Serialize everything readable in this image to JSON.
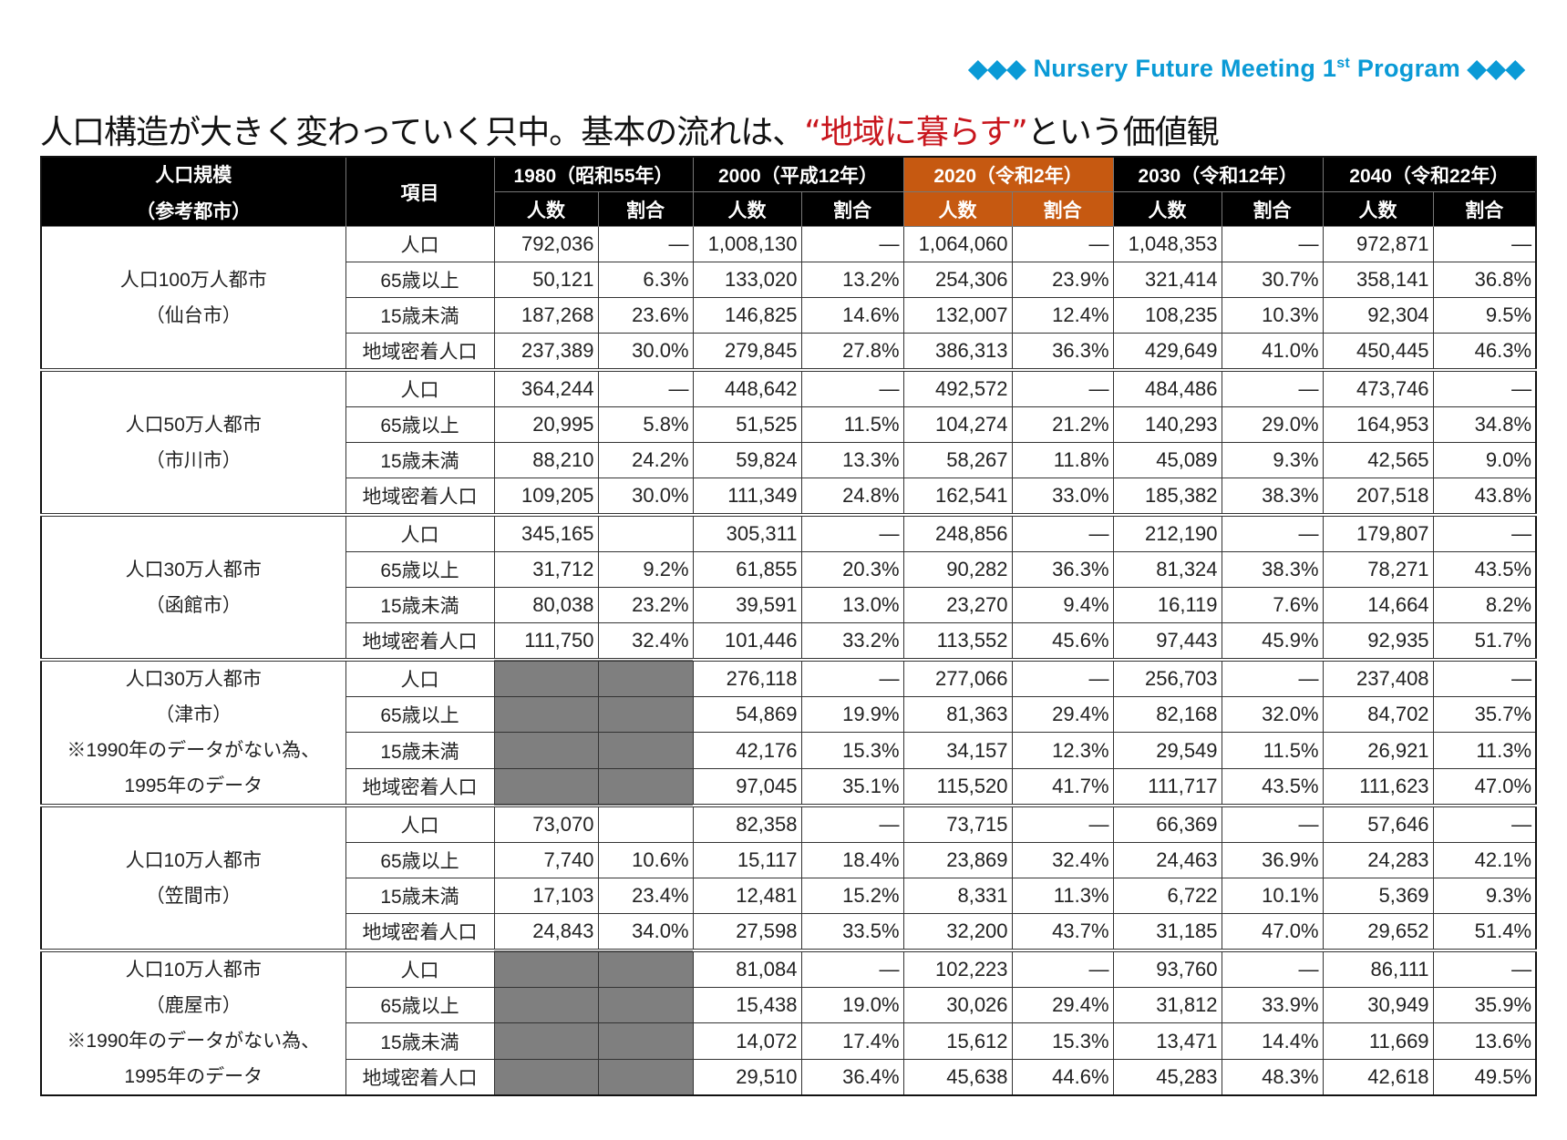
{
  "brand": {
    "prefix": "◆◆◆ Nursery Future Meeting  1",
    "sup": "st",
    "suffix": " Program ◆◆◆",
    "color": "#0a9ad6"
  },
  "title": {
    "before": "人口構造が大きく変わっていく只中。基本の流れは、",
    "highlight": "“地域に暮らす”",
    "after": "という価値観",
    "highlight_color": "#c8161d"
  },
  "table": {
    "header": {
      "scale_label_1": "人口規模",
      "scale_label_2": "（参考都市）",
      "item_label": "項目",
      "years": [
        "1980（昭和55年）",
        "2000（平成12年）",
        "2020（令和2年）",
        "2030（令和12年）",
        "2040（令和22年）"
      ],
      "highlight_year_index": 2,
      "highlight_color": "#c65911",
      "sub": [
        "人数",
        "割合"
      ]
    },
    "items": [
      "人口",
      "65歳以上",
      "15歳未満",
      "地域密着人口"
    ],
    "groups": [
      {
        "city": [
          "人口100万人都市",
          "（仙台市）"
        ],
        "no1980": false,
        "rows": [
          [
            "792,036",
            "—",
            "1,008,130",
            "—",
            "1,064,060",
            "—",
            "1,048,353",
            "—",
            "972,871",
            "—"
          ],
          [
            "50,121",
            "6.3%",
            "133,020",
            "13.2%",
            "254,306",
            "23.9%",
            "321,414",
            "30.7%",
            "358,141",
            "36.8%"
          ],
          [
            "187,268",
            "23.6%",
            "146,825",
            "14.6%",
            "132,007",
            "12.4%",
            "108,235",
            "10.3%",
            "92,304",
            "9.5%"
          ],
          [
            "237,389",
            "30.0%",
            "279,845",
            "27.8%",
            "386,313",
            "36.3%",
            "429,649",
            "41.0%",
            "450,445",
            "46.3%"
          ]
        ]
      },
      {
        "city": [
          "人口50万人都市",
          "（市川市）"
        ],
        "no1980": false,
        "rows": [
          [
            "364,244",
            "—",
            "448,642",
            "—",
            "492,572",
            "—",
            "484,486",
            "—",
            "473,746",
            "—"
          ],
          [
            "20,995",
            "5.8%",
            "51,525",
            "11.5%",
            "104,274",
            "21.2%",
            "140,293",
            "29.0%",
            "164,953",
            "34.8%"
          ],
          [
            "88,210",
            "24.2%",
            "59,824",
            "13.3%",
            "58,267",
            "11.8%",
            "45,089",
            "9.3%",
            "42,565",
            "9.0%"
          ],
          [
            "109,205",
            "30.0%",
            "111,349",
            "24.8%",
            "162,541",
            "33.0%",
            "185,382",
            "38.3%",
            "207,518",
            "43.8%"
          ]
        ]
      },
      {
        "city": [
          "人口30万人都市",
          "（函館市）"
        ],
        "no1980": false,
        "rows": [
          [
            "345,165",
            "",
            "305,311",
            "—",
            "248,856",
            "—",
            "212,190",
            "—",
            "179,807",
            "—"
          ],
          [
            "31,712",
            "9.2%",
            "61,855",
            "20.3%",
            "90,282",
            "36.3%",
            "81,324",
            "38.3%",
            "78,271",
            "43.5%"
          ],
          [
            "80,038",
            "23.2%",
            "39,591",
            "13.0%",
            "23,270",
            "9.4%",
            "16,119",
            "7.6%",
            "14,664",
            "8.2%"
          ],
          [
            "111,750",
            "32.4%",
            "101,446",
            "33.2%",
            "113,552",
            "45.6%",
            "97,443",
            "45.9%",
            "92,935",
            "51.7%"
          ]
        ]
      },
      {
        "city": [
          "人口30万人都市",
          "（津市）",
          "※1990年のデータがない為、",
          "1995年のデータ"
        ],
        "no1980": true,
        "rows": [
          [
            "",
            "",
            "276,118",
            "—",
            "277,066",
            "—",
            "256,703",
            "—",
            "237,408",
            "—"
          ],
          [
            "",
            "",
            "54,869",
            "19.9%",
            "81,363",
            "29.4%",
            "82,168",
            "32.0%",
            "84,702",
            "35.7%"
          ],
          [
            "",
            "",
            "42,176",
            "15.3%",
            "34,157",
            "12.3%",
            "29,549",
            "11.5%",
            "26,921",
            "11.3%"
          ],
          [
            "",
            "",
            "97,045",
            "35.1%",
            "115,520",
            "41.7%",
            "111,717",
            "43.5%",
            "111,623",
            "47.0%"
          ]
        ]
      },
      {
        "city": [
          "人口10万人都市",
          "（笠間市）"
        ],
        "no1980": false,
        "rows": [
          [
            "73,070",
            "",
            "82,358",
            "—",
            "73,715",
            "—",
            "66,369",
            "—",
            "57,646",
            "—"
          ],
          [
            "7,740",
            "10.6%",
            "15,117",
            "18.4%",
            "23,869",
            "32.4%",
            "24,463",
            "36.9%",
            "24,283",
            "42.1%"
          ],
          [
            "17,103",
            "23.4%",
            "12,481",
            "15.2%",
            "8,331",
            "11.3%",
            "6,722",
            "10.1%",
            "5,369",
            "9.3%"
          ],
          [
            "24,843",
            "34.0%",
            "27,598",
            "33.5%",
            "32,200",
            "43.7%",
            "31,185",
            "47.0%",
            "29,652",
            "51.4%"
          ]
        ]
      },
      {
        "city": [
          "人口10万人都市",
          "（鹿屋市）",
          "※1990年のデータがない為、",
          "1995年のデータ"
        ],
        "no1980": true,
        "rows": [
          [
            "",
            "",
            "81,084",
            "—",
            "102,223",
            "—",
            "93,760",
            "—",
            "86,111",
            "—"
          ],
          [
            "",
            "",
            "15,438",
            "19.0%",
            "30,026",
            "29.4%",
            "31,812",
            "33.9%",
            "30,949",
            "35.9%"
          ],
          [
            "",
            "",
            "14,072",
            "17.4%",
            "15,612",
            "15.3%",
            "13,471",
            "14.4%",
            "11,669",
            "13.6%"
          ],
          [
            "",
            "",
            "29,510",
            "36.4%",
            "45,638",
            "44.6%",
            "45,283",
            "48.3%",
            "42,618",
            "49.5%"
          ]
        ]
      }
    ]
  }
}
